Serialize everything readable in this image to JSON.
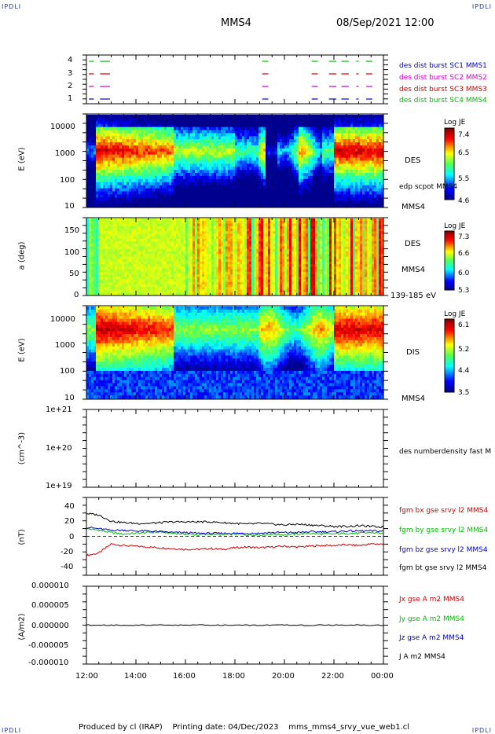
{
  "header": {
    "corner_tl": "IPDLI",
    "corner_tr": "IPDLI",
    "corner_bl": "IPDLI",
    "corner_br": "IPDLI",
    "spacecraft": "MMS4",
    "datetime": "08/Sep/2021 12:00"
  },
  "footer": {
    "text": "Produced by cl (IRAP)    Printing date: 04/Dec/2023    mms_mms4_srvy_vue_web1.cl"
  },
  "colors": {
    "blue": "#0000cc",
    "magenta": "#cc00cc",
    "red": "#cc0000",
    "green": "#00bb00",
    "black": "#000000"
  },
  "time_axis": {
    "ticks": [
      "12:00",
      "14:00",
      "16:00",
      "18:00",
      "20:00",
      "22:00",
      "00:00"
    ]
  },
  "panel1": {
    "yticks": [
      "4",
      "3",
      "2",
      "1"
    ],
    "legend": [
      {
        "text": "des dist burst SC1 MMS1",
        "color": "#0000cc"
      },
      {
        "text": "des dist burst SC2 MMS2",
        "color": "#cc00cc"
      },
      {
        "text": "des dist burst SC3 MMS3",
        "color": "#cc0000"
      },
      {
        "text": "des dist burst SC4 MMS4",
        "color": "#00bb00"
      }
    ]
  },
  "panel2": {
    "ylabel": "E (eV)",
    "yticks": [
      "10000",
      "1000",
      "100",
      "10"
    ],
    "species": "DES",
    "overlay": "edp scpot MMS4",
    "sc": "MMS4",
    "cbar_title": "Log JE",
    "cbar_ticks": [
      "7.4",
      "6.5",
      "5.5",
      "4.6"
    ]
  },
  "panel3": {
    "ylabel": "a (deg)",
    "yticks": [
      "150",
      "100",
      "50",
      "0"
    ],
    "species": "DES",
    "sc": "MMS4",
    "range": "139-185 eV",
    "cbar_title": "Log JE",
    "cbar_ticks": [
      "7.3",
      "6.6",
      "6.0",
      "5.3"
    ]
  },
  "panel4": {
    "ylabel": "E (eV)",
    "yticks": [
      "10000",
      "1000",
      "100",
      "10"
    ],
    "species": "DIS",
    "sc": "MMS4",
    "cbar_title": "Log JE",
    "cbar_ticks": [
      "6.1",
      "5.2",
      "4.4",
      "3.5"
    ]
  },
  "panel5": {
    "ylabel": "(cm^-3)",
    "yticks": [
      "1e+21",
      "1e+20",
      "1e+19"
    ],
    "legend": "des numberdensity fast M"
  },
  "panel6": {
    "ylabel": "(nT)",
    "yticks": [
      "40",
      "20",
      "0",
      "-20",
      "-40"
    ],
    "legend": [
      {
        "text": "fgm bx gse srvy l2 MMS4",
        "color": "#cc0000"
      },
      {
        "text": "fgm by gse srvy l2 MMS4",
        "color": "#00bb00"
      },
      {
        "text": "fgm bz gse srvy l2 MMS4",
        "color": "#0000cc"
      },
      {
        "text": "fgm bt gse srvy l2 MMS4",
        "color": "#000000"
      }
    ]
  },
  "panel7": {
    "ylabel": "(A/m2)",
    "yticks": [
      "0.000010",
      "0.000005",
      "0.000000",
      "-0.000005",
      "-0.000010"
    ],
    "legend": [
      {
        "text": "Jx gse A m2 MMS4",
        "color": "#cc0000"
      },
      {
        "text": "Jy gse A m2 MMS4",
        "color": "#00bb00"
      },
      {
        "text": "Jz gse A m2 MMS4",
        "color": "#0000cc"
      },
      {
        "text": "J A m2 MMS4",
        "color": "#000000"
      }
    ]
  },
  "chart_data": [
    {
      "type": "scatter",
      "x_range": [
        "12:00",
        "00:00"
      ],
      "ylim": [
        0.5,
        4.5
      ],
      "series": [
        {
          "name": "des dist burst SC1 MMS1",
          "y": 1,
          "intervals_hours": [
            [
              12.1,
              12.3
            ],
            [
              12.55,
              12.95
            ],
            [
              19.1,
              19.35
            ],
            [
              21.1,
              21.35
            ],
            [
              21.8,
              22.1
            ],
            [
              22.3,
              22.6
            ],
            [
              22.9,
              23.0
            ],
            [
              23.3,
              23.55
            ]
          ]
        },
        {
          "name": "des dist burst SC2 MMS2",
          "y": 2,
          "intervals_hours": [
            [
              12.1,
              12.3
            ],
            [
              12.55,
              12.95
            ],
            [
              19.1,
              19.35
            ],
            [
              21.1,
              21.35
            ],
            [
              21.8,
              22.1
            ],
            [
              22.3,
              22.6
            ],
            [
              22.9,
              23.0
            ],
            [
              23.3,
              23.55
            ]
          ]
        },
        {
          "name": "des dist burst SC3 MMS3",
          "y": 3,
          "intervals_hours": [
            [
              12.1,
              12.3
            ],
            [
              12.55,
              12.95
            ],
            [
              19.1,
              19.35
            ],
            [
              21.1,
              21.35
            ],
            [
              21.8,
              22.1
            ],
            [
              22.3,
              22.6
            ],
            [
              22.9,
              23.0
            ],
            [
              23.3,
              23.55
            ]
          ]
        },
        {
          "name": "des dist burst SC4 MMS4",
          "y": 4,
          "intervals_hours": [
            [
              12.1,
              12.3
            ],
            [
              12.55,
              12.95
            ],
            [
              19.1,
              19.35
            ],
            [
              21.1,
              21.35
            ],
            [
              21.8,
              22.1
            ],
            [
              22.3,
              22.6
            ],
            [
              22.9,
              23.0
            ],
            [
              23.3,
              23.55
            ]
          ]
        }
      ]
    },
    {
      "type": "heatmap",
      "ylabel": "E (eV)",
      "ylim": [
        10,
        30000
      ],
      "log_y": true,
      "zlabel": "Log JE",
      "zlim": [
        4.6,
        7.4
      ]
    },
    {
      "type": "heatmap",
      "ylabel": "a (deg)",
      "ylim": [
        0,
        180
      ],
      "zlabel": "Log JE",
      "zlim": [
        5.3,
        7.3
      ]
    },
    {
      "type": "heatmap",
      "ylabel": "E (eV)",
      "ylim": [
        10,
        30000
      ],
      "log_y": true,
      "zlabel": "Log JE",
      "zlim": [
        3.5,
        6.1
      ]
    },
    {
      "type": "line",
      "ylabel": "(cm^-3)",
      "ylim": [
        1e+19,
        1e+21
      ],
      "log_y": true,
      "series": []
    },
    {
      "type": "line",
      "ylabel": "(nT)",
      "ylim": [
        -50,
        50
      ],
      "x_hours": [
        12.0,
        12.5,
        13.0,
        13.5,
        14.0,
        14.5,
        15.0,
        15.5,
        16.0,
        16.5,
        17.0,
        17.5,
        18.0,
        18.5,
        19.0,
        19.5,
        20.0,
        20.5,
        21.0,
        21.5,
        22.0,
        22.5,
        23.0,
        23.5,
        24.0
      ],
      "series": [
        {
          "name": "fgm bx gse srvy l2 MMS4",
          "values": [
            -25,
            -22,
            -10,
            -12,
            -13,
            -14,
            -15,
            -16,
            -17,
            -17,
            -16,
            -17,
            -15,
            -14,
            -15,
            -14,
            -13,
            -14,
            -13,
            -12,
            -12,
            -11,
            -12,
            -10,
            -10
          ]
        },
        {
          "name": "fgm by gse srvy l2 MMS4",
          "values": [
            10,
            8,
            5,
            3,
            4,
            5,
            6,
            4,
            3,
            2,
            3,
            2,
            3,
            2,
            2,
            3,
            2,
            3,
            4,
            3,
            3,
            4,
            4,
            5,
            4
          ]
        },
        {
          "name": "fgm bz gse srvy l2 MMS4",
          "values": [
            12,
            10,
            8,
            8,
            7,
            7,
            6,
            5,
            5,
            4,
            4,
            4,
            4,
            4,
            4,
            5,
            5,
            5,
            6,
            6,
            6,
            7,
            7,
            7,
            7
          ]
        },
        {
          "name": "fgm bt gse srvy l2 MMS4",
          "values": [
            30,
            28,
            20,
            18,
            17,
            17,
            18,
            19,
            19,
            19,
            19,
            18,
            17,
            16,
            17,
            16,
            15,
            16,
            15,
            14,
            13,
            13,
            14,
            13,
            12
          ]
        }
      ]
    },
    {
      "type": "line",
      "ylabel": "(A/m2)",
      "ylim": [
        -1e-05,
        1e-05
      ],
      "x_hours": [
        12.0,
        24.0
      ],
      "series": [
        {
          "name": "J A m2 MMS4",
          "values": [
            0.0,
            0.0
          ]
        }
      ]
    }
  ]
}
